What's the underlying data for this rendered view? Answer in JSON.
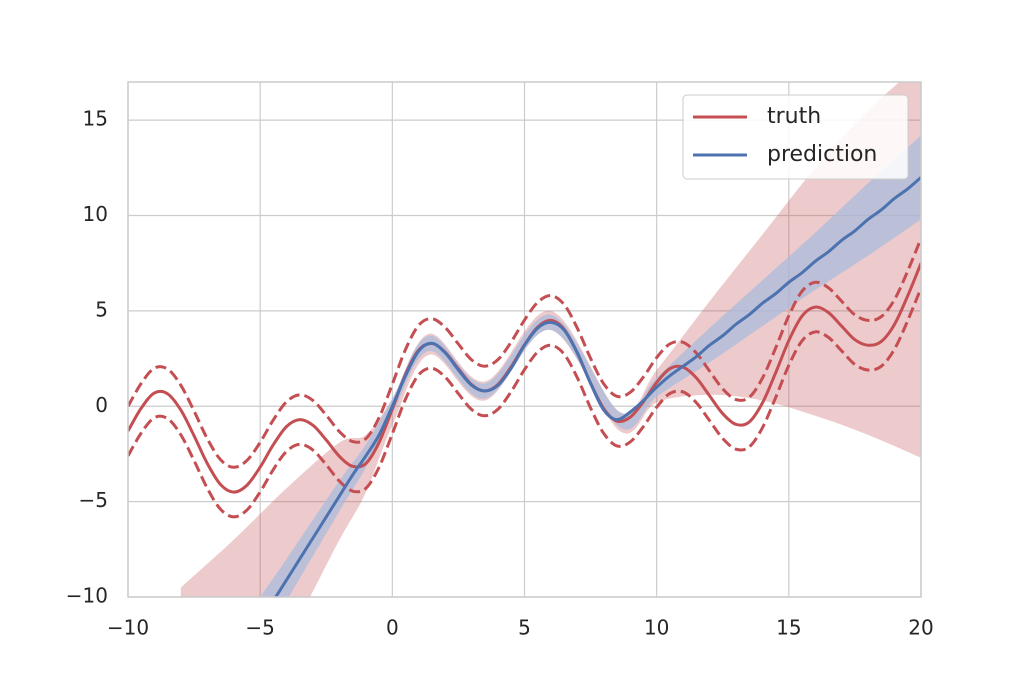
{
  "chart_data": {
    "type": "line",
    "x": [
      -10,
      -9.5,
      -9,
      -8.5,
      -8,
      -7.5,
      -7,
      -6.5,
      -6,
      -5.5,
      -5,
      -4.5,
      -4,
      -3.5,
      -3,
      -2.5,
      -2,
      -1.5,
      -1,
      -0.5,
      0,
      0.5,
      1,
      1.5,
      2,
      2.5,
      3,
      3.5,
      4,
      4.5,
      5,
      5.5,
      6,
      6.5,
      7,
      7.5,
      8,
      8.5,
      9,
      9.5,
      10,
      10.5,
      11,
      11.5,
      12,
      12.5,
      13,
      13.5,
      14,
      14.5,
      15,
      15.5,
      16,
      16.5,
      17,
      17.5,
      18,
      18.5,
      19,
      19.5,
      20
    ],
    "series": [
      {
        "name": "truth",
        "color": "#c44e52",
        "dashed": false,
        "values": [
          -1.3,
          -0.1,
          0.7,
          0.65,
          -0.2,
          -1.55,
          -3.0,
          -4.1,
          -4.5,
          -4.14,
          -3.19,
          -2.01,
          -1.06,
          -0.7,
          -1.0,
          -1.77,
          -2.63,
          -3.15,
          -3.0,
          -1.89,
          -0.14,
          1.68,
          2.95,
          3.29,
          2.83,
          1.96,
          1.13,
          0.8,
          1.15,
          2.08,
          3.22,
          4.15,
          4.5,
          4.03,
          2.79,
          1.21,
          -0.13,
          -0.78,
          -0.57,
          0.24,
          1.25,
          1.97,
          2.05,
          1.49,
          0.55,
          -0.39,
          -0.95,
          -0.83,
          0.17,
          1.75,
          3.45,
          4.73,
          5.2,
          4.91,
          4.2,
          3.49,
          3.2,
          3.4,
          4.3,
          5.8,
          7.5
        ]
      },
      {
        "color": "#c44e52",
        "dashed": true,
        "values": [
          0,
          1.2,
          2.0,
          1.95,
          1.1,
          -0.25,
          -1.7,
          -2.8,
          -3.2,
          -2.84,
          -1.89,
          -0.71,
          0.24,
          0.6,
          0.3,
          -0.47,
          -1.33,
          -1.85,
          -1.7,
          -0.59,
          1.16,
          2.98,
          4.25,
          4.59,
          4.13,
          3.26,
          2.43,
          2.1,
          2.45,
          3.38,
          4.52,
          5.45,
          5.8,
          5.33,
          4.09,
          2.51,
          1.17,
          0.52,
          0.73,
          1.54,
          2.55,
          3.27,
          3.35,
          2.79,
          1.85,
          0.91,
          0.35,
          0.47,
          1.47,
          3.05,
          4.75,
          6.03,
          6.5,
          6.21,
          5.5,
          4.79,
          4.5,
          4.7,
          5.6,
          7.1,
          8.8
        ]
      },
      {
        "color": "#c44e52",
        "dashed": true,
        "values": [
          -2.6,
          -1.4,
          -0.6,
          -0.65,
          -1.5,
          -2.85,
          -4.3,
          -5.4,
          -5.8,
          -5.44,
          -4.49,
          -3.31,
          -2.36,
          -2.0,
          -2.3,
          -3.07,
          -3.93,
          -4.45,
          -4.3,
          -3.19,
          -1.44,
          0.38,
          1.65,
          1.99,
          1.53,
          0.66,
          -0.17,
          -0.5,
          -0.15,
          0.78,
          1.92,
          2.85,
          3.2,
          2.73,
          1.49,
          -0.09,
          -1.43,
          -2.08,
          -1.87,
          -1.06,
          -0.05,
          0.67,
          0.75,
          0.19,
          -0.75,
          -1.69,
          -2.25,
          -2.13,
          -1.13,
          0.45,
          2.15,
          3.43,
          3.9,
          3.61,
          2.9,
          2.19,
          1.9,
          2.1,
          3.0,
          4.5,
          6.2
        ]
      },
      {
        "name": "prediction",
        "color": "#4c72b0",
        "dashed": false,
        "values": [
          null,
          null,
          null,
          null,
          null,
          null,
          null,
          null,
          null,
          null,
          null,
          -10.2,
          -9.1,
          -8.0,
          -6.9,
          -5.8,
          -4.7,
          -3.6,
          -2.6,
          -1.5,
          0.0,
          1.6,
          2.9,
          3.3,
          2.8,
          1.9,
          1.1,
          0.8,
          1.1,
          2.0,
          3.2,
          4.1,
          4.4,
          4.0,
          2.8,
          1.2,
          -0.2,
          -0.7,
          -0.3,
          0.3,
          1.0,
          1.6,
          2.1,
          2.6,
          3.2,
          3.7,
          4.3,
          4.8,
          5.4,
          5.9,
          6.5,
          7.0,
          7.6,
          8.1,
          8.7,
          9.2,
          9.8,
          10.3,
          10.9,
          11.4,
          12.0
        ]
      }
    ],
    "bands": [
      {
        "color": "#c44e52",
        "opacity": 0.3,
        "x": [
          -8,
          -6,
          -4,
          -2,
          -1,
          0,
          1.4,
          3.5,
          6,
          8.6,
          10,
          12,
          14,
          16,
          18,
          20
        ],
        "upper": [
          -9.5,
          -7,
          -4.3,
          -1.9,
          -1.5,
          0.4,
          3.8,
          1.3,
          5.0,
          -0.3,
          1.9,
          5.5,
          9.0,
          12.5,
          15.5,
          18
        ],
        "lower": [
          -16,
          -14,
          -12,
          -7,
          -4.5,
          -1.0,
          2.7,
          0.3,
          4.0,
          -1.3,
          0.2,
          0.6,
          0.3,
          -0.5,
          -1.5,
          -2.7
        ]
      },
      {
        "color": "#a9bcdc",
        "opacity": 0.75,
        "x": [
          -5,
          -4,
          -2,
          -1,
          0,
          1.4,
          3.5,
          6,
          8.6,
          10,
          12,
          14,
          16,
          18,
          20
        ],
        "upper": [
          -10.0,
          -8.0,
          -3.9,
          -2.0,
          0.4,
          3.7,
          1.2,
          4.8,
          -0.3,
          1.5,
          4.1,
          6.6,
          9.1,
          11.7,
          14.2
        ],
        "lower": [
          -12.6,
          -10.2,
          -5.5,
          -3.2,
          -0.4,
          2.9,
          0.4,
          4.0,
          -1.1,
          0.5,
          2.3,
          4.2,
          6.1,
          7.9,
          9.8
        ]
      }
    ],
    "xlim": [
      -10,
      20
    ],
    "xticks": [
      {
        "value": -10,
        "label": "−10"
      },
      {
        "value": -5,
        "label": "−5"
      },
      0,
      5,
      10,
      15,
      20
    ],
    "ylim": [
      -10,
      17
    ],
    "yticks": [
      {
        "value": -10,
        "label": "−10"
      },
      {
        "value": -5,
        "label": "−5"
      },
      0,
      5,
      10,
      15
    ],
    "grid": true,
    "legend": "upper-right"
  }
}
